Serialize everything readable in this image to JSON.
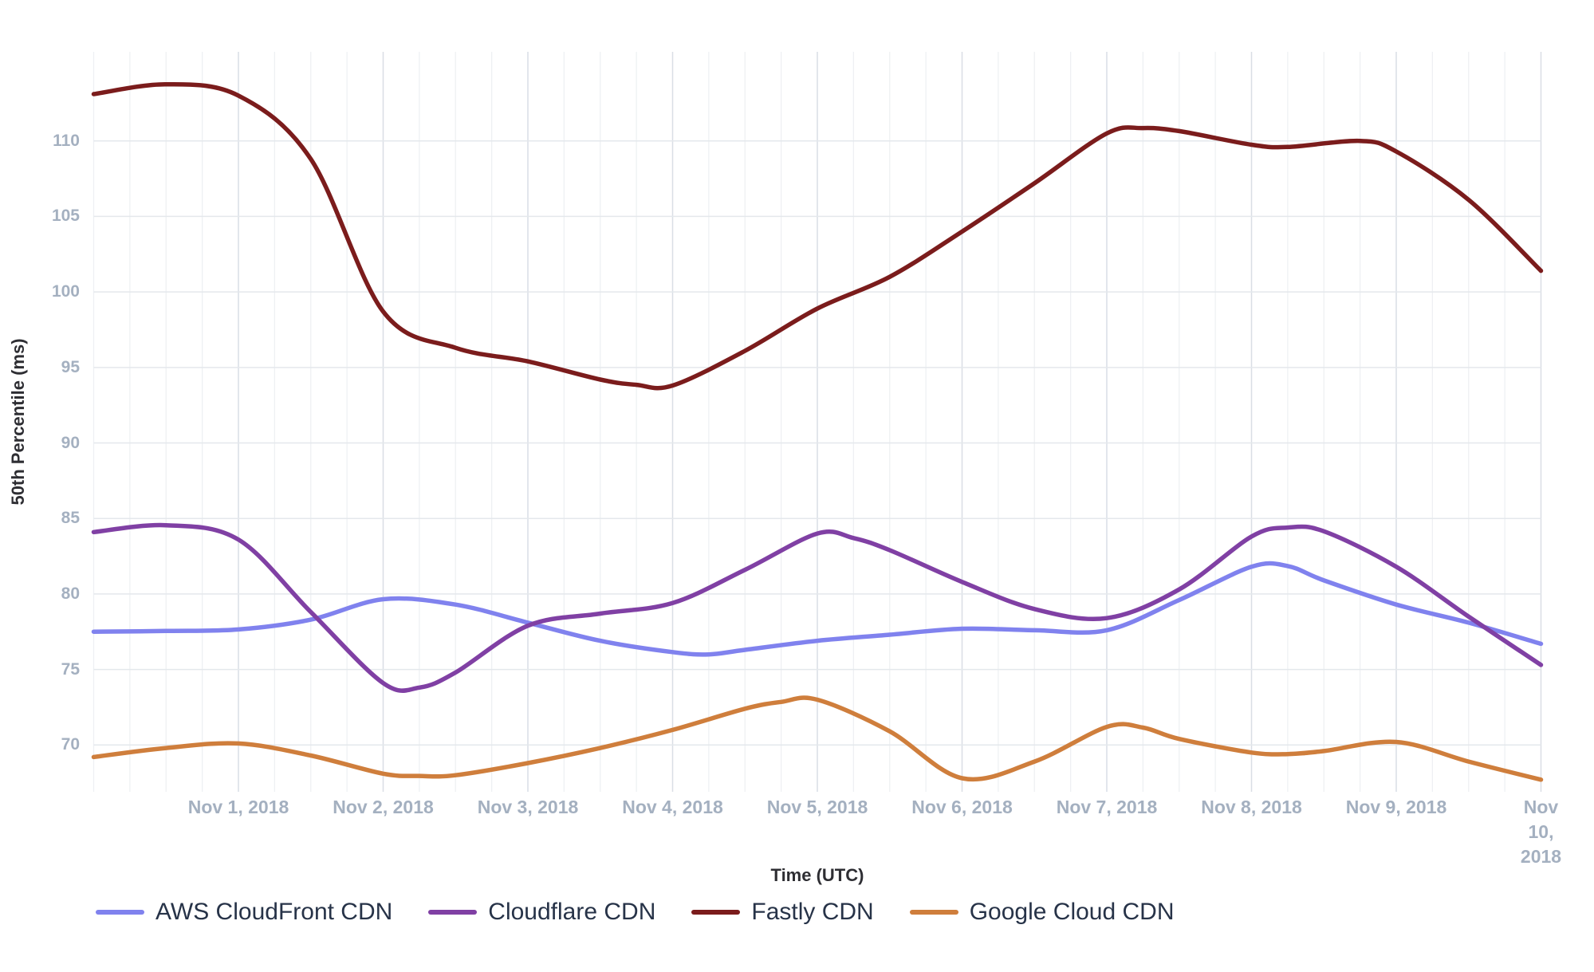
{
  "chart_data": {
    "type": "line",
    "title": "",
    "xlabel": "Time (UTC)",
    "ylabel": "50th Percentile (ms)",
    "x_range": [
      0,
      10
    ],
    "ylim": [
      66.9,
      115.9
    ],
    "y_ticks": [
      70,
      75,
      80,
      85,
      90,
      95,
      100,
      105,
      110
    ],
    "x_ticks": [
      {
        "t": 1,
        "label": "Nov 1, 2018"
      },
      {
        "t": 2,
        "label": "Nov 2, 2018"
      },
      {
        "t": 3,
        "label": "Nov 3, 2018"
      },
      {
        "t": 4,
        "label": "Nov 4, 2018"
      },
      {
        "t": 5,
        "label": "Nov 5, 2018"
      },
      {
        "t": 6,
        "label": "Nov 6, 2018"
      },
      {
        "t": 7,
        "label": "Nov 7, 2018"
      },
      {
        "t": 8,
        "label": "Nov 8, 2018"
      },
      {
        "t": 9,
        "label": "Nov 9, 2018"
      },
      {
        "t": 10,
        "label": "Nov 10,\n2018"
      }
    ],
    "minor_grid_step": 0.25,
    "grid": true,
    "legend_position": "bottom-left",
    "series": [
      {
        "name": "AWS CloudFront CDN",
        "color": "#8082ee",
        "points": [
          [
            0,
            77.5
          ],
          [
            0.5,
            77.55
          ],
          [
            1,
            77.65
          ],
          [
            1.5,
            78.3
          ],
          [
            2,
            79.65
          ],
          [
            2.5,
            79.3
          ],
          [
            3,
            78.1
          ],
          [
            3.5,
            76.9
          ],
          [
            4,
            76.15
          ],
          [
            4.25,
            76.0
          ],
          [
            4.5,
            76.3
          ],
          [
            5,
            76.9
          ],
          [
            5.5,
            77.3
          ],
          [
            6,
            77.7
          ],
          [
            6.5,
            77.6
          ],
          [
            7,
            77.6
          ],
          [
            7.5,
            79.6
          ],
          [
            8,
            81.8
          ],
          [
            8.25,
            81.85
          ],
          [
            8.5,
            80.9
          ],
          [
            9,
            79.3
          ],
          [
            9.5,
            78.1
          ],
          [
            10,
            76.7
          ]
        ]
      },
      {
        "name": "Cloudflare CDN",
        "color": "#8040a4",
        "points": [
          [
            0,
            84.1
          ],
          [
            0.5,
            84.55
          ],
          [
            1,
            83.6
          ],
          [
            1.5,
            78.8
          ],
          [
            2,
            74.1
          ],
          [
            2.25,
            73.8
          ],
          [
            2.5,
            74.8
          ],
          [
            3,
            77.9
          ],
          [
            3.5,
            78.7
          ],
          [
            4,
            79.4
          ],
          [
            4.5,
            81.6
          ],
          [
            5,
            84.0
          ],
          [
            5.25,
            83.7
          ],
          [
            5.5,
            82.9
          ],
          [
            6,
            80.8
          ],
          [
            6.5,
            79.0
          ],
          [
            7,
            78.4
          ],
          [
            7.5,
            80.3
          ],
          [
            8,
            83.8
          ],
          [
            8.25,
            84.4
          ],
          [
            8.5,
            84.15
          ],
          [
            9,
            81.8
          ],
          [
            9.5,
            78.5
          ],
          [
            10,
            75.3
          ]
        ]
      },
      {
        "name": "Fastly CDN",
        "color": "#7b1c1c",
        "points": [
          [
            0,
            113.1
          ],
          [
            0.5,
            113.75
          ],
          [
            1,
            113.0
          ],
          [
            1.5,
            108.8
          ],
          [
            2,
            98.7
          ],
          [
            2.5,
            96.3
          ],
          [
            3,
            95.4
          ],
          [
            3.5,
            94.2
          ],
          [
            3.75,
            93.85
          ],
          [
            4,
            93.8
          ],
          [
            4.5,
            96.1
          ],
          [
            5,
            98.9
          ],
          [
            5.5,
            101.0
          ],
          [
            6,
            104.0
          ],
          [
            6.5,
            107.2
          ],
          [
            7,
            110.5
          ],
          [
            7.25,
            110.85
          ],
          [
            7.5,
            110.65
          ],
          [
            8,
            109.75
          ],
          [
            8.25,
            109.6
          ],
          [
            8.75,
            110.0
          ],
          [
            9,
            109.3
          ],
          [
            9.5,
            106.1
          ],
          [
            10,
            101.4
          ]
        ]
      },
      {
        "name": "Google Cloud CDN",
        "color": "#cf7e3c",
        "points": [
          [
            0,
            69.2
          ],
          [
            0.5,
            69.8
          ],
          [
            1,
            70.1
          ],
          [
            1.5,
            69.3
          ],
          [
            2,
            68.1
          ],
          [
            2.25,
            67.95
          ],
          [
            2.5,
            68.0
          ],
          [
            3,
            68.8
          ],
          [
            3.5,
            69.8
          ],
          [
            4,
            71.0
          ],
          [
            4.5,
            72.4
          ],
          [
            4.75,
            72.85
          ],
          [
            5,
            73.0
          ],
          [
            5.5,
            70.9
          ],
          [
            6,
            67.8
          ],
          [
            6.5,
            68.9
          ],
          [
            7,
            71.2
          ],
          [
            7.25,
            71.15
          ],
          [
            7.5,
            70.4
          ],
          [
            8,
            69.5
          ],
          [
            8.25,
            69.4
          ],
          [
            8.5,
            69.6
          ],
          [
            9,
            70.2
          ],
          [
            9.5,
            68.9
          ],
          [
            10,
            67.7
          ]
        ]
      }
    ]
  },
  "colors": {
    "background": "#ffffff",
    "tick_label": "#a4b0c0",
    "axis_title": "#2e2e33",
    "legend_text": "#273348",
    "grid_minor": "#eef0f3",
    "grid_major": "#d9dee5",
    "grid_horizontal": "#e4e8ec"
  }
}
